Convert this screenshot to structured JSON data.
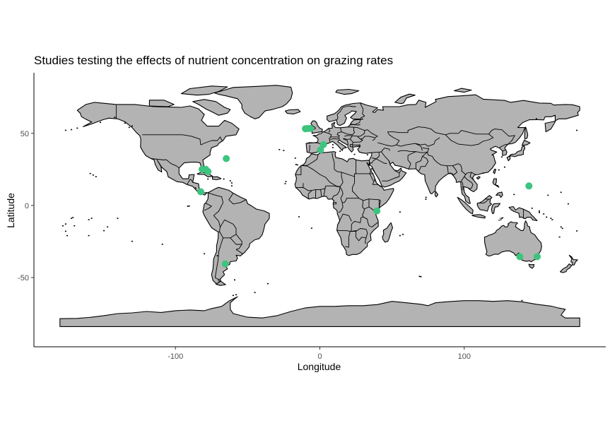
{
  "chart_data": {
    "type": "scatter",
    "title": "Studies testing the effects of nutrient concentration on grazing rates",
    "xlabel": "Longitude",
    "ylabel": "Latitude",
    "xlim": [
      -198,
      198
    ],
    "ylim": [
      -98,
      92
    ],
    "x_ticks": [
      -100,
      0,
      100
    ],
    "y_ticks": [
      -50,
      0,
      50
    ],
    "grid": false,
    "basemap": "world country outlines, grey fill",
    "colors": {
      "land": "#b3b3b3",
      "border": "#000000",
      "point": "#3dc47f"
    },
    "points": [
      {
        "x": -81.5,
        "y": 25.0
      },
      {
        "x": -79.0,
        "y": 25.0
      },
      {
        "x": -77.5,
        "y": 23.5
      },
      {
        "x": -64.8,
        "y": 32.5
      },
      {
        "x": -82.5,
        "y": 9.5
      },
      {
        "x": -65.5,
        "y": -40.5
      },
      {
        "x": -10.0,
        "y": 53.2
      },
      {
        "x": -8.5,
        "y": 53.3
      },
      {
        "x": -6.5,
        "y": 53.3
      },
      {
        "x": 2.5,
        "y": 42.2
      },
      {
        "x": 0.5,
        "y": 38.5
      },
      {
        "x": 39.5,
        "y": -3.8
      },
      {
        "x": 144.8,
        "y": 13.5
      },
      {
        "x": 138.5,
        "y": -35.5
      },
      {
        "x": 150.5,
        "y": -35.5
      }
    ]
  }
}
